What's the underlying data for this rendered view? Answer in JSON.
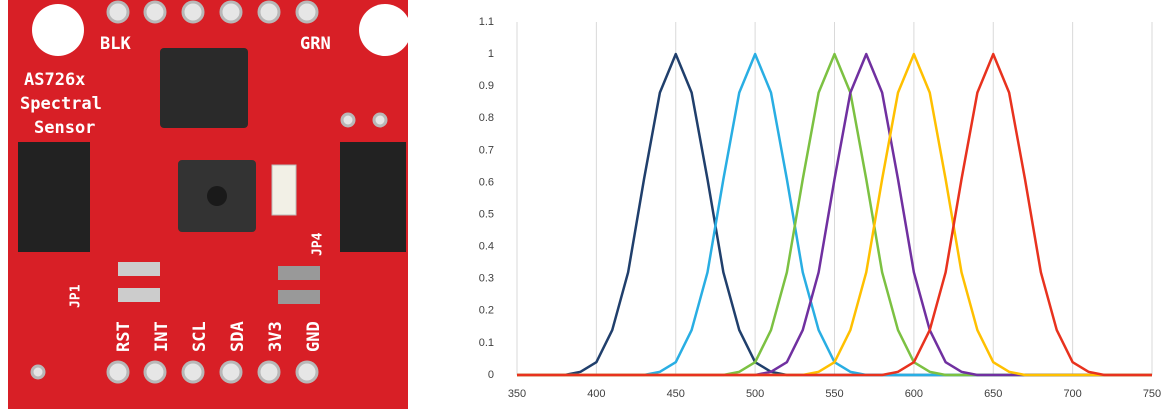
{
  "board": {
    "labels": [
      "BLK",
      "GRN",
      "AS726x",
      "Spectral",
      "Sensor",
      "RST",
      "INT",
      "SCL",
      "SDA",
      "3V3",
      "GND",
      "JP1",
      "JP4"
    ]
  },
  "chart_data": {
    "type": "line",
    "x": [
      350,
      360,
      370,
      380,
      390,
      400,
      410,
      420,
      430,
      440,
      450,
      460,
      470,
      480,
      490,
      500,
      510,
      520,
      530,
      540,
      550,
      560,
      570,
      580,
      590,
      600,
      610,
      620,
      630,
      640,
      650,
      660,
      670,
      680,
      690,
      700,
      710,
      720,
      730,
      740,
      750
    ],
    "series": [
      {
        "color": "#203f6c",
        "values": [
          0,
          0,
          0,
          0,
          0.01,
          0.04,
          0.14,
          0.32,
          0.61,
          0.88,
          1,
          0.88,
          0.61,
          0.32,
          0.14,
          0.04,
          0.01,
          0,
          0,
          0,
          0,
          0,
          0,
          0,
          0,
          0,
          0,
          0,
          0,
          0,
          0,
          0,
          0,
          0,
          0,
          0,
          0,
          0,
          0,
          0,
          0
        ]
      },
      {
        "color": "#29aee3",
        "values": [
          0,
          0,
          0,
          0,
          0,
          0,
          0,
          0,
          0,
          0.01,
          0.04,
          0.14,
          0.32,
          0.61,
          0.88,
          1,
          0.88,
          0.61,
          0.32,
          0.14,
          0.04,
          0.01,
          0,
          0,
          0,
          0,
          0,
          0,
          0,
          0,
          0,
          0,
          0,
          0,
          0,
          0,
          0,
          0,
          0,
          0,
          0
        ]
      },
      {
        "color": "#7cc142",
        "values": [
          0,
          0,
          0,
          0,
          0,
          0,
          0,
          0,
          0,
          0,
          0,
          0,
          0,
          0,
          0.01,
          0.04,
          0.14,
          0.32,
          0.61,
          0.88,
          1,
          0.88,
          0.61,
          0.32,
          0.14,
          0.04,
          0.01,
          0,
          0,
          0,
          0,
          0,
          0,
          0,
          0,
          0,
          0,
          0,
          0,
          0,
          0
        ]
      },
      {
        "color": "#7030a0",
        "values": [
          0,
          0,
          0,
          0,
          0,
          0,
          0,
          0,
          0,
          0,
          0,
          0,
          0,
          0,
          0,
          0,
          0.01,
          0.04,
          0.14,
          0.32,
          0.61,
          0.88,
          1,
          0.88,
          0.61,
          0.32,
          0.14,
          0.04,
          0.01,
          0,
          0,
          0,
          0,
          0,
          0,
          0,
          0,
          0,
          0,
          0,
          0
        ]
      },
      {
        "color": "#ffc000",
        "values": [
          0,
          0,
          0,
          0,
          0,
          0,
          0,
          0,
          0,
          0,
          0,
          0,
          0,
          0,
          0,
          0,
          0,
          0,
          0,
          0.01,
          0.04,
          0.14,
          0.32,
          0.61,
          0.88,
          1,
          0.88,
          0.61,
          0.32,
          0.14,
          0.04,
          0.01,
          0,
          0,
          0,
          0,
          0,
          0,
          0,
          0,
          0
        ]
      },
      {
        "color": "#e8321e",
        "values": [
          0,
          0,
          0,
          0,
          0,
          0,
          0,
          0,
          0,
          0,
          0,
          0,
          0,
          0,
          0,
          0,
          0,
          0,
          0,
          0,
          0,
          0,
          0,
          0,
          0.01,
          0.04,
          0.14,
          0.32,
          0.61,
          0.88,
          1,
          0.88,
          0.61,
          0.32,
          0.14,
          0.04,
          0.01,
          0,
          0,
          0,
          0
        ]
      }
    ],
    "xlim": [
      350,
      750
    ],
    "xticks": [
      350,
      400,
      450,
      500,
      550,
      600,
      650,
      700,
      750
    ],
    "ylim": [
      0,
      1.1
    ],
    "yticks": [
      0,
      0.1,
      0.2,
      0.3,
      0.4,
      0.5,
      0.6,
      0.7,
      0.8,
      0.9,
      1,
      1.1
    ],
    "grid": true
  }
}
